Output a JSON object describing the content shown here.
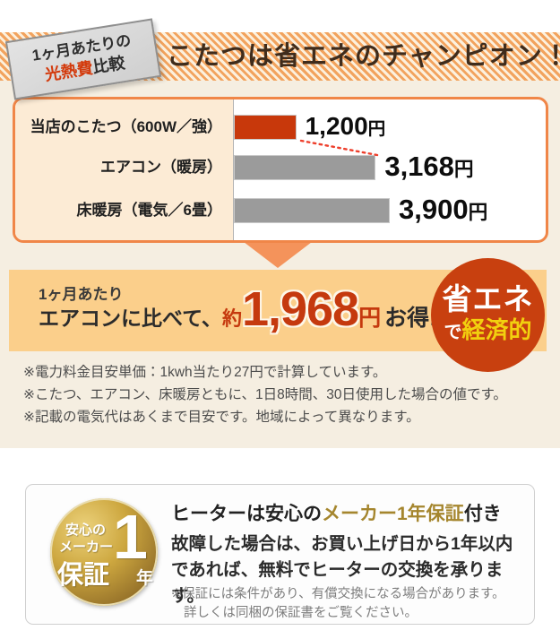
{
  "header": {
    "compare_badge": {
      "line1": "1ヶ月あたりの",
      "highlight": "光熱費",
      "rest": "比較"
    },
    "title": "こたつは省エネのチャンピオン！"
  },
  "chart_data": {
    "type": "bar",
    "orientation": "horizontal",
    "title": "1ヶ月あたりの光熱費比較",
    "categories": [
      "当店のこたつ（600W／強）",
      "エアコン（暖房）",
      "床暖房（電気／6畳）"
    ],
    "values": [
      1200,
      3168,
      3900
    ],
    "value_labels": [
      "1,200",
      "3,168",
      "3,900"
    ],
    "unit": "円",
    "bar_colors": [
      "#c8380b",
      "#9b9b9b",
      "#9b9b9b"
    ],
    "bar_display_widths_pct": [
      20,
      45.5,
      50
    ],
    "legend": "none",
    "grid": "off",
    "annotation": "red dotted connector from kotatsu bar end to aircon bar end"
  },
  "savings": {
    "line1": "1ヶ月あたり",
    "compare_text": "エアコンに比べて、",
    "approx": "約",
    "amount": "1,968",
    "unit": "円",
    "suffix": "お得!",
    "badge_line1": "省エネ",
    "badge_de": "で",
    "badge_line2": "経済的"
  },
  "notes": {
    "items": [
      "※電力料金目安単価：1kwh当たり27円で計算しています。",
      "※こたつ、エアコン、床暖房ともに、1日8時間、30日使用した場合の値です。",
      "※記載の電気代はあくまで目安です。地域によって異なります。"
    ]
  },
  "warranty": {
    "badge": {
      "line1": "安心の",
      "line2": "メーカー",
      "line3": "保証",
      "big_number": "1",
      "big_unit": "年"
    },
    "title_prefix": "ヒーターは安心の",
    "title_highlight": "メーカー1年保証",
    "title_suffix": "付き",
    "body": "故障した場合は、お買い上げ日から1年以内であれば、無料でヒーターの交換を承ります。",
    "note_lines": [
      "※保証には条件があり、有償交換になる場合があります。",
      "詳しくは同梱の保証書をご覧ください。"
    ]
  },
  "colors": {
    "accent_orange": "#f08648",
    "arrow_orange": "#f4935b",
    "band_orange": "#fbcf8b",
    "hatch_orange": "#f2a35e",
    "red_accent": "#c5390e",
    "bar_red": "#c8380b",
    "bar_gray": "#9b9b9b",
    "eco_badge_red": "#c8400f",
    "eco_yellow": "#f2d00f",
    "gold_text": "#a5862e",
    "beige_bg": "#f5eee1",
    "label_col_beige": "#fcebd5"
  }
}
